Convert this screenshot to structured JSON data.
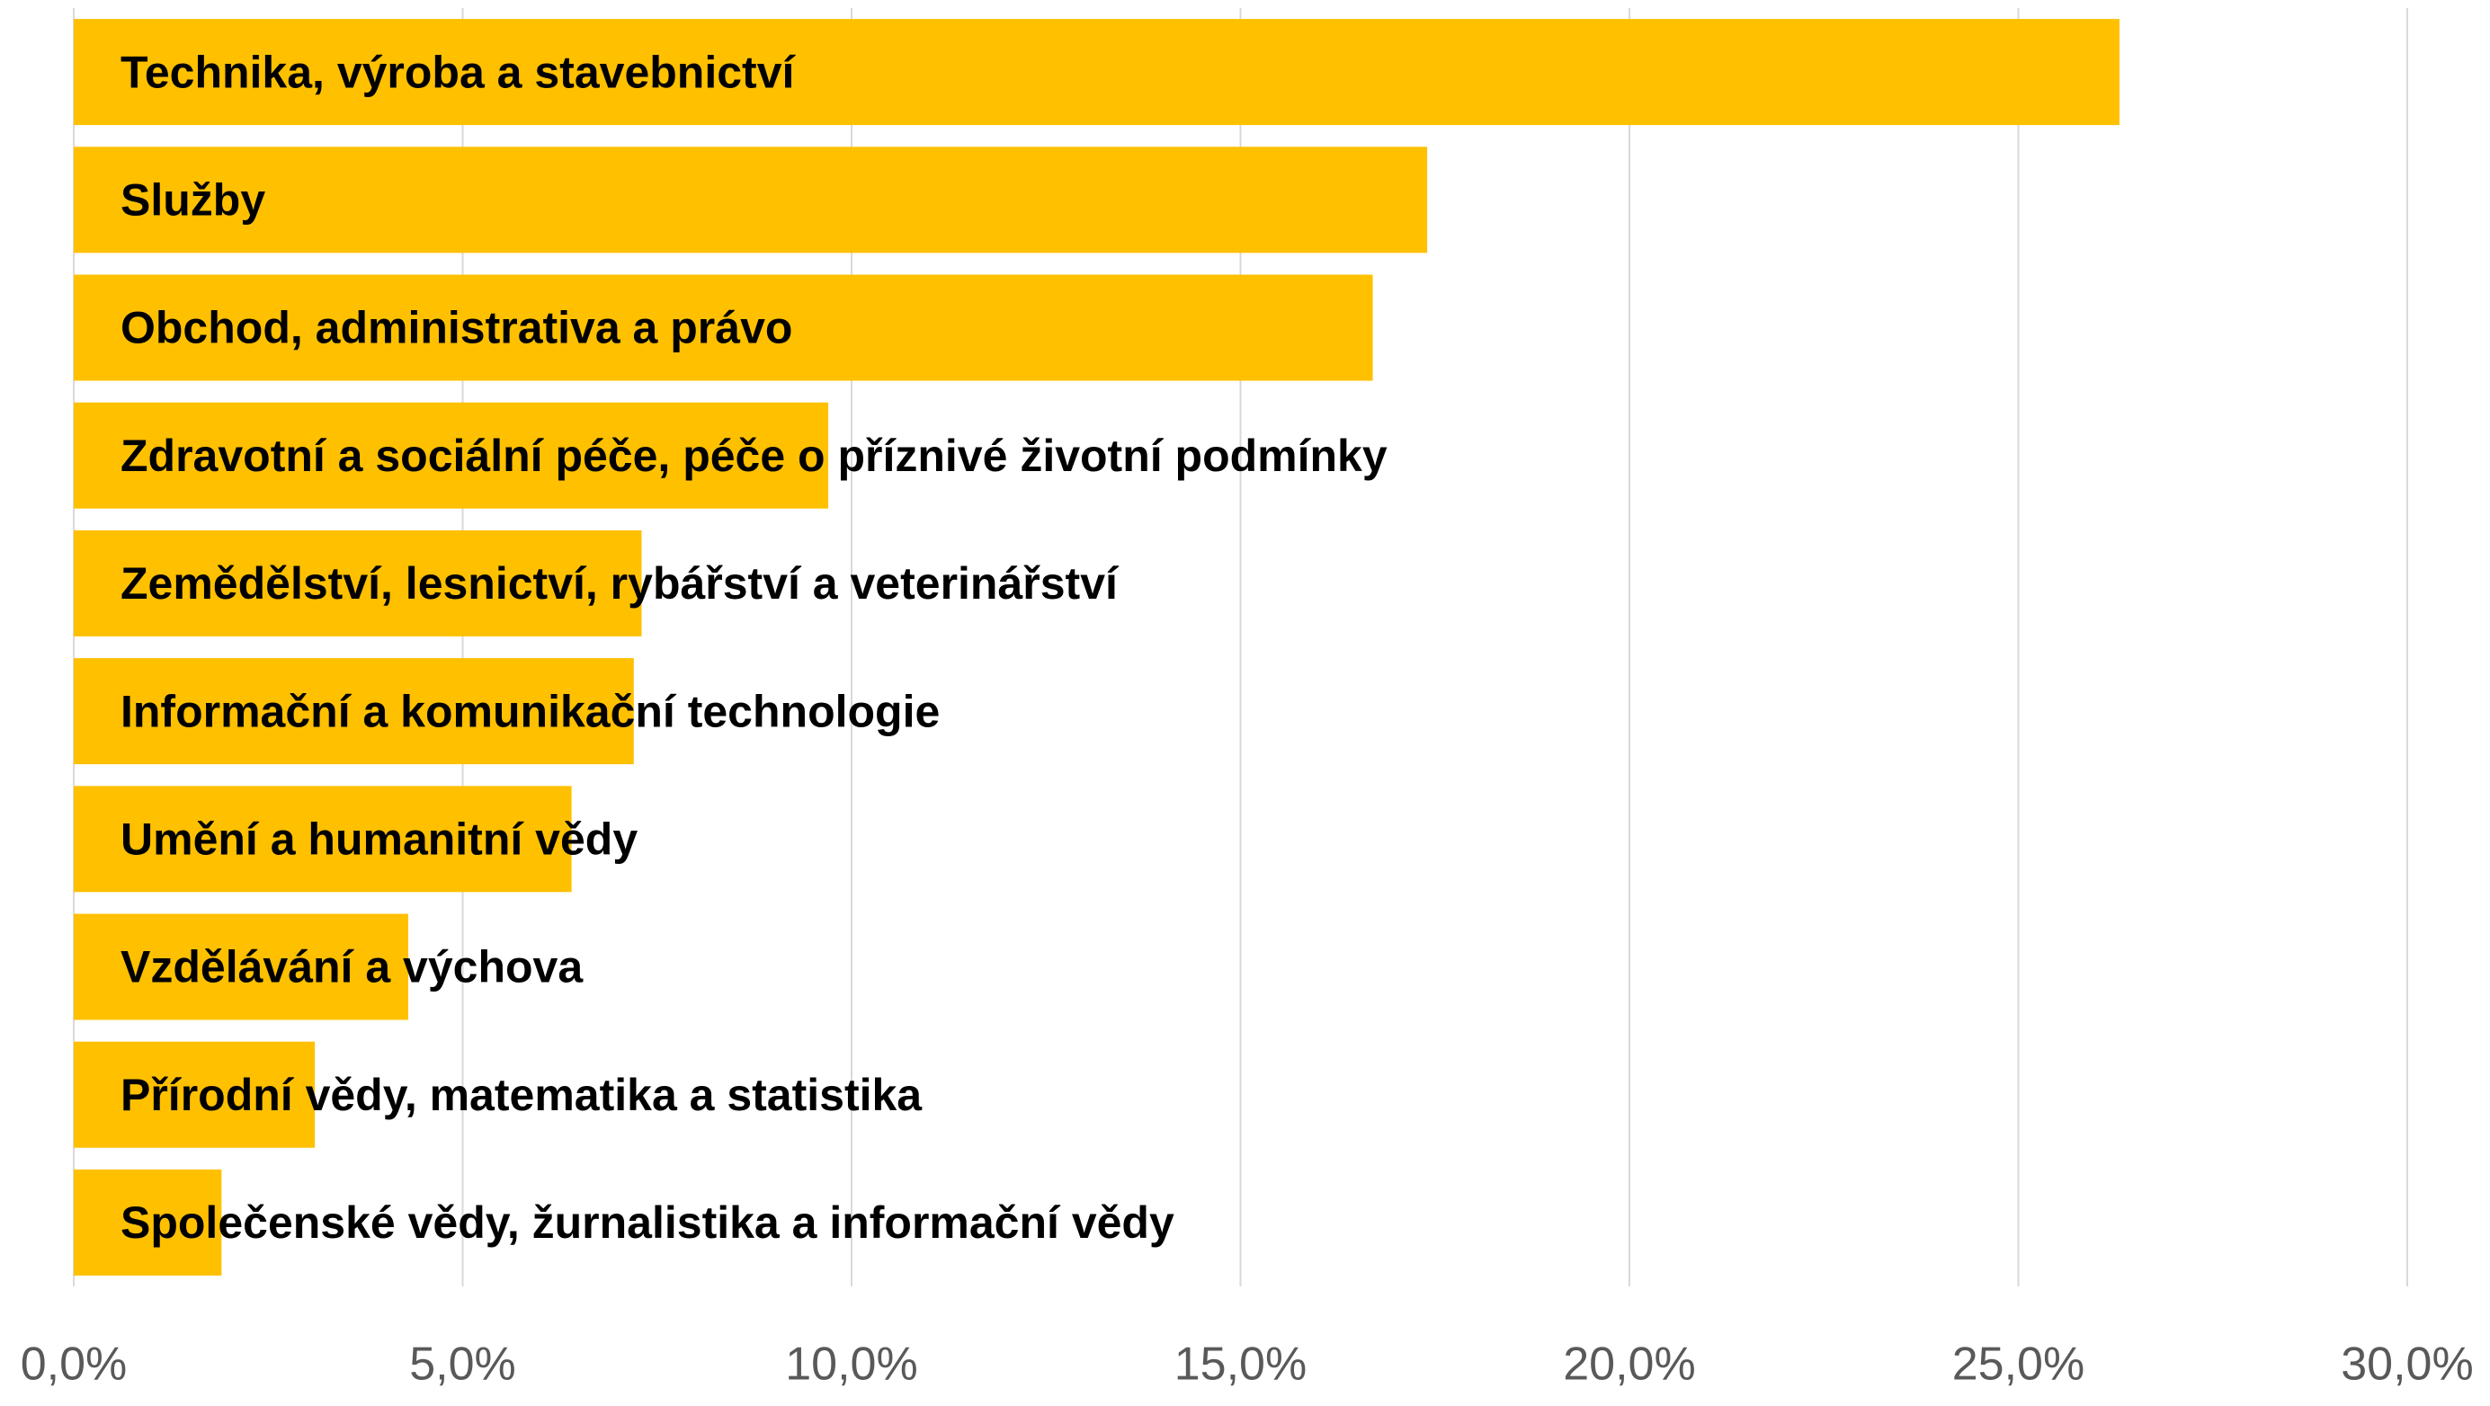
{
  "chart_data": {
    "type": "bar",
    "orientation": "horizontal",
    "categories": [
      "Technika, výroba a stavebnictví",
      "Služby",
      "Obchod, administrativa a právo",
      "Zdravotní a sociální péče, péče o příznivé životní podmínky",
      "Zemědělství, lesnictví, rybářství a veterinářství",
      "Informační a komunikační technologie",
      "Umění a humanitní vědy",
      "Vzdělávání a výchova",
      "Přírodní vědy, matematika a statistika",
      "Společenské vědy, žurnalistika a informační vědy"
    ],
    "values": [
      26.3,
      17.4,
      16.7,
      9.7,
      7.3,
      7.2,
      6.4,
      4.3,
      3.1,
      1.9
    ],
    "color": "#ffc000",
    "xlim": [
      0,
      30
    ],
    "xticks": [
      {
        "value": 0,
        "label": "0,0%"
      },
      {
        "value": 5,
        "label": "5,0%"
      },
      {
        "value": 10,
        "label": "10,0%"
      },
      {
        "value": 15,
        "label": "15,0%"
      },
      {
        "value": 20,
        "label": "20,0%"
      },
      {
        "value": 25,
        "label": "25,0%"
      },
      {
        "value": 30,
        "label": "30,0%"
      }
    ],
    "grid": true
  }
}
